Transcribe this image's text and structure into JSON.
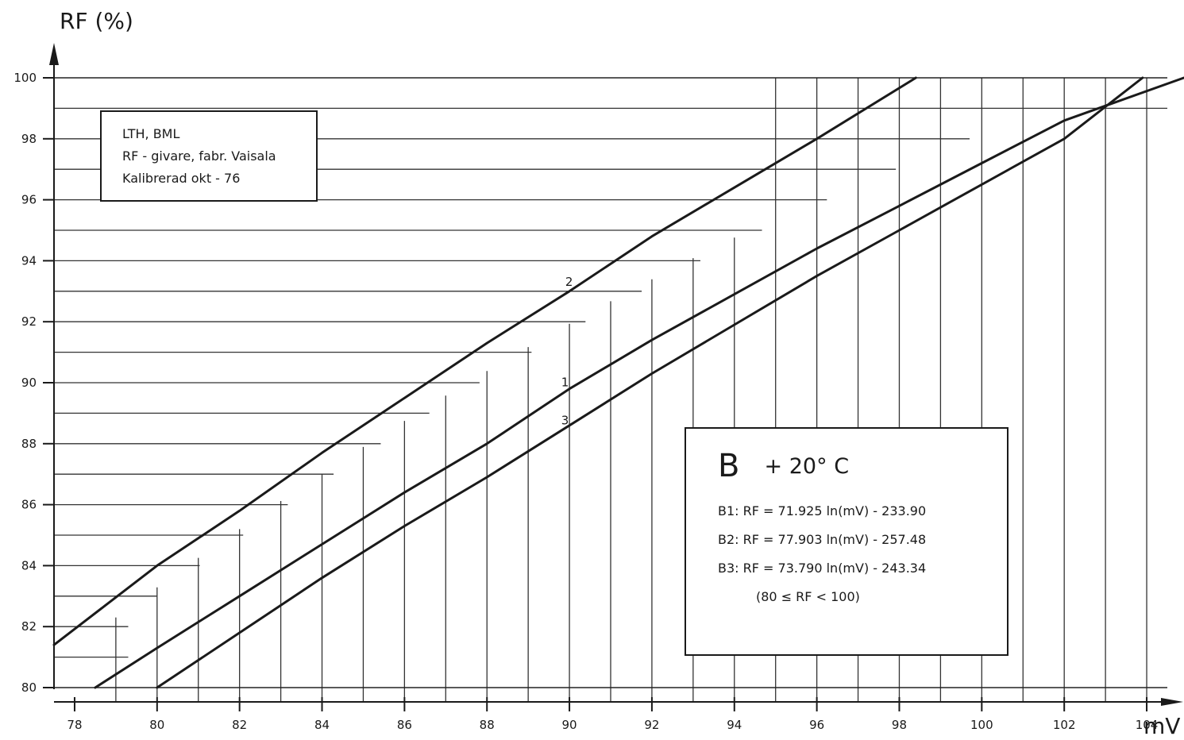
{
  "chart_data": {
    "type": "line",
    "title": "",
    "xlabel": "mV",
    "ylabel": "RF (%)",
    "xlim": [
      77.5,
      104.5
    ],
    "ylim": [
      80,
      100
    ],
    "x_ticks": [
      78,
      80,
      82,
      84,
      86,
      88,
      90,
      92,
      94,
      96,
      98,
      100,
      102,
      104
    ],
    "y_ticks": [
      80,
      82,
      84,
      86,
      88,
      90,
      92,
      94,
      96,
      98,
      100
    ],
    "grid": "stepped",
    "series": [
      {
        "name": "1",
        "color": "#1a1a1a",
        "x": [
          78.5,
          80,
          82,
          84,
          86,
          88,
          90,
          92,
          94,
          96,
          98,
          100,
          102,
          104.9
        ],
        "y": [
          80.0,
          81.3,
          83.0,
          84.7,
          86.4,
          88.0,
          89.8,
          91.4,
          92.9,
          94.4,
          95.8,
          97.2,
          98.6,
          100.0
        ]
      },
      {
        "name": "2",
        "color": "#1a1a1a",
        "x": [
          77.5,
          80,
          82,
          84,
          86,
          88,
          90,
          92,
          94,
          96,
          98.4
        ],
        "y": [
          81.4,
          84.0,
          85.8,
          87.7,
          89.5,
          91.3,
          93.0,
          94.8,
          96.4,
          98.0,
          100.0
        ]
      },
      {
        "name": "3",
        "color": "#1a1a1a",
        "x": [
          80,
          82,
          84,
          86,
          88,
          90,
          92,
          94,
          96,
          98,
          100,
          102,
          103.9
        ],
        "y": [
          80.0,
          81.8,
          83.6,
          85.3,
          86.9,
          88.6,
          90.3,
          91.9,
          93.5,
          95.0,
          96.5,
          98.0,
          100.0
        ]
      }
    ],
    "annotations": {
      "info_lines": [
        "LTH, BML",
        "RF - givare, fabr. Vaisala",
        "Kalibrerad  okt - 76"
      ],
      "legend_letter": "B",
      "legend_temp": "+ 20° C",
      "equations": [
        "B1: RF = 71.925 ln(mV) - 233.90",
        "B2: RF = 77.903 ln(mV) - 257.48",
        "B3: RF = 73.790 ln(mV) - 243.34"
      ],
      "range_note": "(80 ≤ RF < 100)"
    }
  }
}
